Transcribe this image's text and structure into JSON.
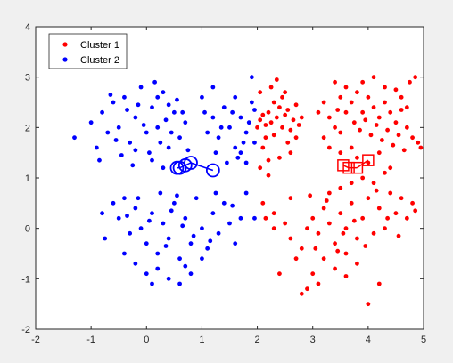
{
  "chart_data": {
    "type": "scatter",
    "title": "",
    "xlabel": "",
    "ylabel": "",
    "xlim": [
      -2,
      5
    ],
    "ylim": [
      -2,
      4
    ],
    "grid": false,
    "legend_position": "top-left",
    "x_ticks": [
      "-2",
      "-1",
      "0",
      "1",
      "2",
      "3",
      "4",
      "5"
    ],
    "y_ticks": [
      "-2",
      "-1",
      "0",
      "1",
      "2",
      "3",
      "4"
    ],
    "x_tick_values": [
      -2,
      -1,
      0,
      1,
      2,
      3,
      4,
      5
    ],
    "y_tick_values": [
      -2,
      -1,
      0,
      1,
      2,
      3,
      4
    ],
    "series": [
      {
        "name": "Cluster 1",
        "color": "#ff0000",
        "marker": "dot",
        "points": [
          [
            2.05,
            2.15
          ],
          [
            2.1,
            2.25
          ],
          [
            2.15,
            2.05
          ],
          [
            2.2,
            2.3
          ],
          [
            2.25,
            2.1
          ],
          [
            2.3,
            1.85
          ],
          [
            2.35,
            2.2
          ],
          [
            2.4,
            2.4
          ],
          [
            2.45,
            2.0
          ],
          [
            2.5,
            2.25
          ],
          [
            2.55,
            2.35
          ],
          [
            2.6,
            1.95
          ],
          [
            2.65,
            2.15
          ],
          [
            2.7,
            2.45
          ],
          [
            2.75,
            2.05
          ],
          [
            2.8,
            2.2
          ],
          [
            2.3,
            2.5
          ],
          [
            2.45,
            2.6
          ],
          [
            2.25,
            2.8
          ],
          [
            2.55,
            1.7
          ],
          [
            2.6,
            1.5
          ],
          [
            2.4,
            1.4
          ],
          [
            2.1,
            1.6
          ],
          [
            2.0,
            2.0
          ],
          [
            2.15,
            1.8
          ],
          [
            2.5,
            2.7
          ],
          [
            2.35,
            2.95
          ],
          [
            2.05,
            2.7
          ],
          [
            2.7,
            1.8
          ],
          [
            2.2,
            1.35
          ],
          [
            3.4,
            2.9
          ],
          [
            3.5,
            2.6
          ],
          [
            3.6,
            2.8
          ],
          [
            3.7,
            2.5
          ],
          [
            3.8,
            2.7
          ],
          [
            3.9,
            2.3
          ],
          [
            4.0,
            2.6
          ],
          [
            4.1,
            2.4
          ],
          [
            4.2,
            2.2
          ],
          [
            4.3,
            2.5
          ],
          [
            4.4,
            2.3
          ],
          [
            4.5,
            2.1
          ],
          [
            4.6,
            2.35
          ],
          [
            4.7,
            2.0
          ],
          [
            4.8,
            1.8
          ],
          [
            4.9,
            1.7
          ],
          [
            4.95,
            1.6
          ],
          [
            3.3,
            2.2
          ],
          [
            3.4,
            2.0
          ],
          [
            3.5,
            1.9
          ],
          [
            3.6,
            2.3
          ],
          [
            3.75,
            2.1
          ],
          [
            3.85,
            1.95
          ],
          [
            3.95,
            2.15
          ],
          [
            4.05,
            1.85
          ],
          [
            4.15,
            2.05
          ],
          [
            4.25,
            1.75
          ],
          [
            4.35,
            1.95
          ],
          [
            4.45,
            1.65
          ],
          [
            4.55,
            1.85
          ],
          [
            4.65,
            1.55
          ],
          [
            4.75,
            2.9
          ],
          [
            4.85,
            3.0
          ],
          [
            4.1,
            3.0
          ],
          [
            3.9,
            2.9
          ],
          [
            4.3,
            2.8
          ],
          [
            4.5,
            2.75
          ],
          [
            3.5,
            1.5
          ],
          [
            3.7,
            1.6
          ],
          [
            3.8,
            1.4
          ],
          [
            4.0,
            1.3
          ],
          [
            4.2,
            1.5
          ],
          [
            4.4,
            1.2
          ],
          [
            3.2,
            1.8
          ],
          [
            3.3,
            1.6
          ],
          [
            3.1,
            2.3
          ],
          [
            3.2,
            2.5
          ],
          [
            4.6,
            2.6
          ],
          [
            4.7,
            2.4
          ],
          [
            3.45,
            2.35
          ],
          [
            2.1,
            0.5
          ],
          [
            2.3,
            0.3
          ],
          [
            2.5,
            0.1
          ],
          [
            2.6,
            -0.2
          ],
          [
            2.8,
            -0.4
          ],
          [
            2.9,
            0.0
          ],
          [
            3.0,
            0.2
          ],
          [
            3.1,
            -0.1
          ],
          [
            3.2,
            0.4
          ],
          [
            3.3,
            0.1
          ],
          [
            3.4,
            -0.3
          ],
          [
            3.5,
            0.3
          ],
          [
            3.6,
            0.0
          ],
          [
            3.7,
            0.5
          ],
          [
            3.8,
            -0.2
          ],
          [
            3.9,
            0.2
          ],
          [
            4.0,
            0.6
          ],
          [
            4.1,
            -0.1
          ],
          [
            4.2,
            0.4
          ],
          [
            4.3,
            0.0
          ],
          [
            4.4,
            0.7
          ],
          [
            4.5,
            0.3
          ],
          [
            4.6,
            0.6
          ],
          [
            4.7,
            0.2
          ],
          [
            4.8,
            0.5
          ],
          [
            4.85,
            0.35
          ],
          [
            3.3,
            0.7
          ],
          [
            3.5,
            0.8
          ],
          [
            3.7,
            0.9
          ],
          [
            3.9,
            1.0
          ],
          [
            4.1,
            0.9
          ],
          [
            4.3,
            1.1
          ],
          [
            3.2,
            -0.6
          ],
          [
            3.4,
            -0.8
          ],
          [
            3.6,
            -0.5
          ],
          [
            3.8,
            -0.7
          ],
          [
            3.0,
            -0.9
          ],
          [
            3.1,
            -1.1
          ],
          [
            2.8,
            -1.3
          ],
          [
            2.9,
            -1.2
          ],
          [
            4.0,
            -1.5
          ],
          [
            4.2,
            -1.1
          ],
          [
            3.6,
            -0.95
          ],
          [
            2.4,
            -0.9
          ],
          [
            2.7,
            -0.6
          ],
          [
            3.05,
            -0.4
          ],
          [
            3.55,
            -0.1
          ],
          [
            3.75,
            0.15
          ],
          [
            3.25,
            0.55
          ],
          [
            2.95,
            0.65
          ],
          [
            2.6,
            0.6
          ],
          [
            2.3,
            0.0
          ],
          [
            2.15,
            0.2
          ],
          [
            3.45,
            -0.45
          ],
          [
            4.35,
            0.2
          ],
          [
            4.55,
            -0.15
          ],
          [
            3.95,
            -0.35
          ],
          [
            4.15,
            0.75
          ],
          [
            2.05,
            1.2
          ],
          [
            2.2,
            1.05
          ]
        ],
        "centroids": [
          [
            3.55,
            1.25
          ],
          [
            3.65,
            1.2
          ],
          [
            3.8,
            1.2
          ],
          [
            4.0,
            1.35
          ]
        ]
      },
      {
        "name": "Cluster 2",
        "color": "#0000ff",
        "marker": "dot",
        "points": [
          [
            -1.3,
            1.8
          ],
          [
            -1.0,
            2.1
          ],
          [
            -0.9,
            1.6
          ],
          [
            -0.8,
            2.3
          ],
          [
            -0.7,
            1.9
          ],
          [
            -0.6,
            2.5
          ],
          [
            -0.5,
            2.0
          ],
          [
            -0.4,
            2.6
          ],
          [
            -0.3,
            1.7
          ],
          [
            -0.2,
            2.2
          ],
          [
            -0.1,
            2.8
          ],
          [
            0.0,
            1.9
          ],
          [
            0.1,
            2.4
          ],
          [
            0.2,
            2.0
          ],
          [
            0.3,
            2.7
          ],
          [
            0.4,
            1.6
          ],
          [
            0.5,
            2.3
          ],
          [
            0.6,
            1.8
          ],
          [
            0.7,
            2.1
          ],
          [
            0.15,
            2.9
          ],
          [
            -0.15,
            2.45
          ],
          [
            0.35,
            2.15
          ],
          [
            -0.45,
            1.45
          ],
          [
            -0.25,
            1.25
          ],
          [
            0.05,
            1.5
          ],
          [
            0.25,
            1.7
          ],
          [
            0.45,
            1.9
          ],
          [
            -0.35,
            2.35
          ],
          [
            -0.05,
            2.05
          ],
          [
            0.55,
            2.55
          ],
          [
            -0.65,
            2.65
          ],
          [
            -0.85,
            1.35
          ],
          [
            0.65,
            2.3
          ],
          [
            0.75,
            1.55
          ],
          [
            -0.55,
            1.75
          ],
          [
            0.1,
            1.35
          ],
          [
            0.3,
            1.2
          ],
          [
            -0.2,
            1.55
          ],
          [
            0.2,
            2.6
          ],
          [
            0.4,
            2.45
          ],
          [
            1.0,
            2.6
          ],
          [
            1.2,
            2.2
          ],
          [
            1.3,
            1.8
          ],
          [
            1.4,
            2.4
          ],
          [
            1.5,
            2.0
          ],
          [
            1.6,
            1.6
          ],
          [
            1.7,
            2.2
          ],
          [
            1.8,
            1.9
          ],
          [
            1.9,
            2.5
          ],
          [
            1.95,
            1.7
          ],
          [
            1.1,
            1.9
          ],
          [
            1.25,
            1.5
          ],
          [
            1.35,
            2.0
          ],
          [
            1.55,
            2.3
          ],
          [
            1.65,
            1.4
          ],
          [
            1.75,
            1.7
          ],
          [
            1.85,
            2.1
          ],
          [
            1.45,
            1.3
          ],
          [
            1.6,
            2.6
          ],
          [
            1.9,
            3.0
          ],
          [
            1.2,
            2.8
          ],
          [
            1.05,
            2.3
          ],
          [
            1.8,
            1.3
          ],
          [
            1.95,
            2.35
          ],
          [
            1.7,
            1.5
          ],
          [
            -0.6,
            0.5
          ],
          [
            -0.5,
            0.2
          ],
          [
            -0.4,
            0.6
          ],
          [
            -0.3,
            -0.1
          ],
          [
            -0.2,
            0.4
          ],
          [
            -0.1,
            0.0
          ],
          [
            0.0,
            -0.3
          ],
          [
            0.1,
            0.3
          ],
          [
            0.2,
            -0.5
          ],
          [
            0.3,
            0.1
          ],
          [
            0.4,
            -0.2
          ],
          [
            0.5,
            0.5
          ],
          [
            0.6,
            -0.6
          ],
          [
            0.7,
            0.2
          ],
          [
            0.8,
            -0.3
          ],
          [
            0.9,
            0.6
          ],
          [
            1.0,
            0.0
          ],
          [
            1.1,
            -0.4
          ],
          [
            1.2,
            0.3
          ],
          [
            1.3,
            -0.1
          ],
          [
            1.4,
            0.5
          ],
          [
            1.5,
            0.1
          ],
          [
            1.6,
            -0.3
          ],
          [
            1.7,
            0.2
          ],
          [
            1.8,
            0.7
          ],
          [
            -0.2,
            -0.7
          ],
          [
            0.0,
            -0.9
          ],
          [
            0.2,
            -0.8
          ],
          [
            0.4,
            -1.0
          ],
          [
            0.6,
            -1.1
          ],
          [
            0.8,
            -0.9
          ],
          [
            -0.4,
            -0.5
          ],
          [
            0.1,
            -1.1
          ],
          [
            0.7,
            -0.75
          ],
          [
            1.0,
            -0.6
          ],
          [
            -0.75,
            -0.2
          ],
          [
            -0.8,
            0.3
          ],
          [
            0.25,
            0.7
          ],
          [
            0.55,
            0.65
          ],
          [
            1.25,
            0.7
          ],
          [
            1.55,
            0.45
          ],
          [
            1.95,
            0.2
          ],
          [
            -0.15,
            0.6
          ],
          [
            0.45,
            0.35
          ],
          [
            0.65,
            0.05
          ],
          [
            0.85,
            -0.15
          ],
          [
            1.15,
            -0.25
          ],
          [
            -0.35,
            0.25
          ],
          [
            0.05,
            0.15
          ],
          [
            0.35,
            -0.35
          ]
        ],
        "centroids": [
          [
            0.55,
            1.2
          ],
          [
            0.6,
            1.2
          ],
          [
            0.7,
            1.25
          ],
          [
            0.8,
            1.3
          ],
          [
            1.2,
            1.15
          ]
        ]
      }
    ]
  },
  "legend": {
    "items": [
      {
        "label": "Cluster 1",
        "color": "#ff0000"
      },
      {
        "label": "Cluster 2",
        "color": "#0000ff"
      }
    ]
  }
}
